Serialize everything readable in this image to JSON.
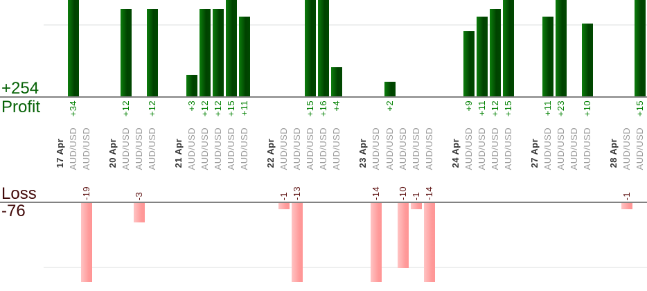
{
  "summary": {
    "profit_total": "+254",
    "profit_label": "Profit",
    "loss_label": "Loss",
    "loss_total": "-76"
  },
  "chart_data": {
    "type": "bar",
    "instrument": "AUD/USD",
    "profit_axis": {
      "label": "Profit",
      "total": 254,
      "gridline_values": [
        10
      ],
      "baseline": 0,
      "visible_range": [
        0,
        13
      ],
      "note_bars_clipped_above": 13
    },
    "loss_axis": {
      "label": "Loss",
      "total": -76,
      "gridline_values": [
        -10
      ],
      "baseline": 0,
      "visible_range": [
        -12,
        0
      ],
      "note_bars_clipped_below": -12
    },
    "groups": [
      {
        "date": "17 Apr",
        "trades": [
          34,
          -19
        ]
      },
      {
        "date": "20 Apr",
        "trades": [
          12,
          -3,
          12
        ]
      },
      {
        "date": "21 Apr",
        "trades": [
          3,
          12,
          12,
          15,
          11
        ]
      },
      {
        "date": "22 Apr",
        "trades": [
          -1,
          -13,
          15,
          16,
          4
        ]
      },
      {
        "date": "23 Apr",
        "trades": [
          -14,
          2,
          -10,
          -1,
          -14
        ]
      },
      {
        "date": "24 Apr",
        "trades": [
          9,
          11,
          12,
          15
        ]
      },
      {
        "date": "27 Apr",
        "trades": [
          11,
          23,
          null,
          10
        ]
      },
      {
        "date": "28 Apr",
        "trades": [
          -1,
          15
        ]
      }
    ]
  },
  "colors": {
    "profit_bar_light": "#0c7e0c",
    "profit_bar_dark": "#004200",
    "loss_bar_light": "#ffc4c4",
    "loss_bar_dark": "#ff9a9a",
    "profit_total_text": "#066206",
    "loss_total_text": "#400808",
    "profit_value_text": "#008000",
    "loss_value_text": "#5f1414",
    "date_text": "#333333",
    "instrument_text": "#9b9b9b",
    "baseline": "#828282",
    "gridline": "#eeefef"
  }
}
